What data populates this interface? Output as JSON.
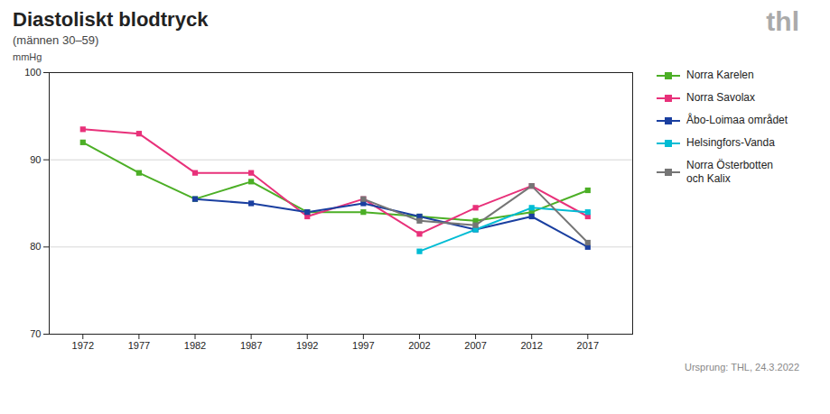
{
  "chart_data": {
    "type": "line",
    "title": "Diastoliskt blodtryck",
    "subtitle": "(männen 30–59)",
    "ylabel": "mmHg",
    "annotations": [
      "thl",
      "Ursprung: THL, 24.3.2022"
    ],
    "x": [
      1972,
      1977,
      1982,
      1987,
      1992,
      1997,
      2002,
      2007,
      2012,
      2017
    ],
    "series": [
      {
        "name": "Norra Karelen",
        "color": "#4caf26",
        "values": [
          92,
          88.5,
          85.5,
          87.5,
          84,
          84,
          83.5,
          83,
          84,
          86.5
        ]
      },
      {
        "name": "Norra Savolax",
        "color": "#e8317a",
        "values": [
          93.5,
          93,
          88.5,
          88.5,
          83.5,
          85.5,
          81.5,
          84.5,
          87,
          83.5
        ]
      },
      {
        "name": "Åbo-Loimaa området",
        "color": "#1a3fa0",
        "values": [
          null,
          null,
          85.5,
          85,
          84,
          85,
          83.5,
          82,
          83.5,
          80
        ]
      },
      {
        "name": "Helsingfors-Vanda",
        "color": "#00bcd4",
        "values": [
          null,
          null,
          null,
          null,
          null,
          null,
          79.5,
          82,
          84.5,
          84
        ]
      },
      {
        "name": "Norra Österbotten\noch Kalix",
        "color": "#757575",
        "values": [
          null,
          null,
          null,
          null,
          null,
          85.5,
          83,
          82.5,
          87,
          80.5
        ]
      }
    ],
    "xlim": [
      1969,
      2021
    ],
    "xticks": [
      1972,
      1977,
      1982,
      1987,
      1992,
      1997,
      2002,
      2007,
      2012,
      2017
    ],
    "ylim": [
      70,
      100
    ],
    "yticks": [
      70,
      80,
      90,
      100
    ],
    "grid": true,
    "legend": "right",
    "marker": "square"
  }
}
